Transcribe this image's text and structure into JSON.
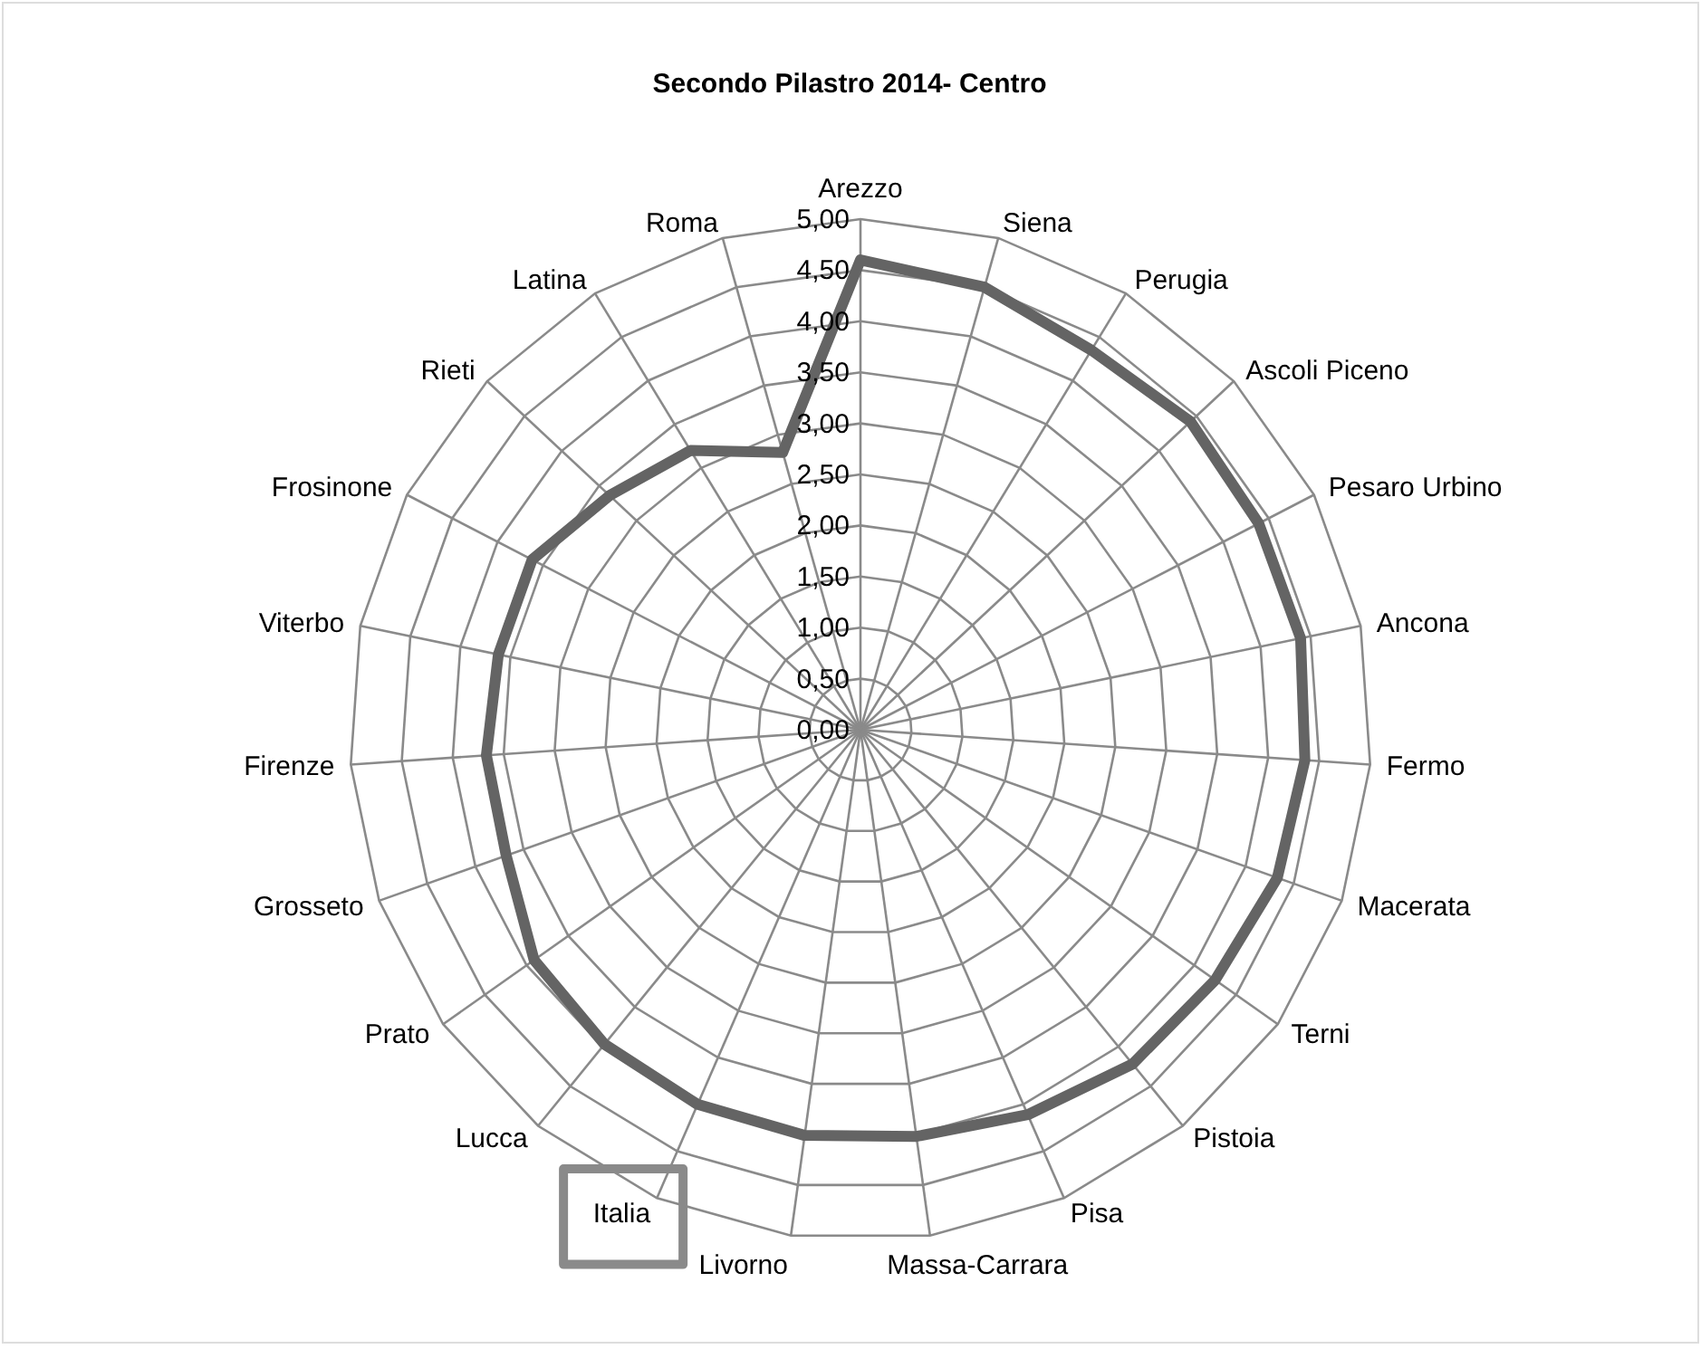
{
  "chart_data": {
    "type": "radar",
    "title": "Secondo Pilastro 2014- Centro",
    "categories": [
      "Arezzo",
      "Siena",
      "Perugia",
      "Ascoli Piceno",
      "Pesaro Urbino",
      "Ancona",
      "Fermo",
      "Macerata",
      "Terni",
      "Pistoia",
      "Pisa",
      "Massa-Carrara",
      "Livorno",
      "Italia",
      "Lucca",
      "Prato",
      "Grosseto",
      "Firenze",
      "Viterbo",
      "Frosinone",
      "Rieti",
      "Latina",
      "Roma"
    ],
    "series": [
      {
        "color": "#646464",
        "values": [
          4.6,
          4.5,
          4.35,
          4.42,
          4.39,
          4.4,
          4.36,
          4.33,
          4.25,
          4.22,
          4.11,
          4.02,
          4.01,
          4.0,
          3.97,
          3.91,
          3.68,
          3.67,
          3.62,
          3.62,
          3.36,
          3.2,
          2.82
        ]
      }
    ],
    "ylim": [
      0,
      5
    ],
    "yticks": [
      {
        "value": 0,
        "label": "0,00"
      },
      {
        "value": 0.5,
        "label": "0,50"
      },
      {
        "value": 1,
        "label": "1,00"
      },
      {
        "value": 1.5,
        "label": "1,50"
      },
      {
        "value": 2,
        "label": "2,00"
      },
      {
        "value": 2.5,
        "label": "2,50"
      },
      {
        "value": 3,
        "label": "3,00"
      },
      {
        "value": 3.5,
        "label": "3,50"
      },
      {
        "value": 4,
        "label": "4,00"
      },
      {
        "value": 4.5,
        "label": "4,50"
      },
      {
        "value": 5,
        "label": "5,00"
      }
    ],
    "grid": true
  }
}
